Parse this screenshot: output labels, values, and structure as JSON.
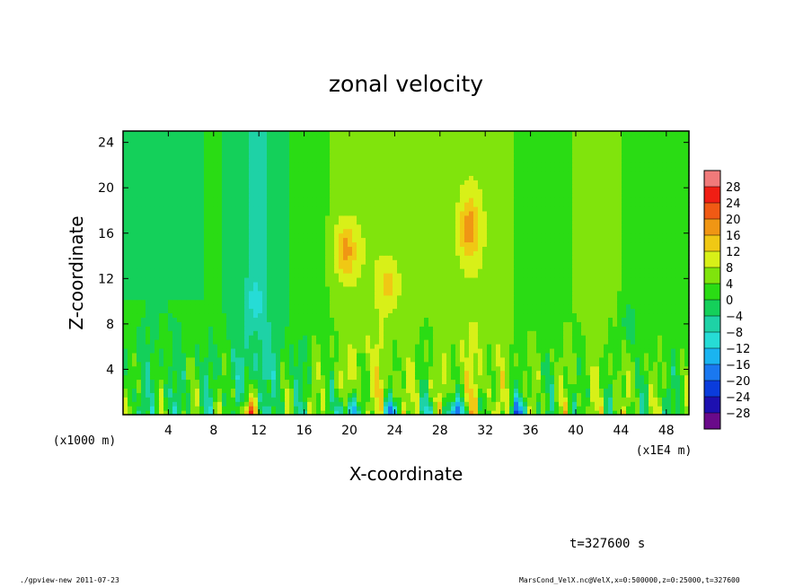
{
  "chart_data": {
    "type": "heatmap",
    "title": "zonal velocity",
    "xlabel": "X-coordinate",
    "ylabel": "Z-coordinate",
    "x_unit": "(x1E4 m)",
    "y_unit": "(x1000 m)",
    "xlim": [
      0,
      50
    ],
    "ylim": [
      0,
      25
    ],
    "x_ticks": [
      4,
      8,
      12,
      16,
      20,
      24,
      28,
      32,
      36,
      40,
      44,
      48
    ],
    "y_ticks": [
      4,
      8,
      12,
      16,
      20,
      24
    ],
    "colorbar": {
      "levels": [
        -28,
        -24,
        -20,
        -16,
        -12,
        -8,
        -4,
        0,
        4,
        8,
        12,
        16,
        20,
        24,
        28
      ],
      "labels": [
        "28",
        "24",
        "20",
        "16",
        "12",
        "8",
        "4",
        "0",
        "−4",
        "−8",
        "−12",
        "−16",
        "−20",
        "−24",
        "−28"
      ],
      "colors": [
        "#6a0a8a",
        "#1d10b0",
        "#0a3cdc",
        "#1a78f0",
        "#1ab4f0",
        "#26dcd6",
        "#1ed2a6",
        "#14d05a",
        "#2adc14",
        "#80e40c",
        "#d8f018",
        "#f0c814",
        "#f09614",
        "#f05a14",
        "#f01e14",
        "#f07a7a"
      ]
    },
    "features": [
      {
        "desc": "positive jet",
        "x": 19.5,
        "z": 14.5,
        "value": 20
      },
      {
        "desc": "positive jet",
        "x": 30.5,
        "z": 16.5,
        "value": 20
      },
      {
        "desc": "positive jet",
        "x": 23.5,
        "z": 11.5,
        "value": 16
      },
      {
        "desc": "surface max",
        "x": 11,
        "z": 0.5,
        "value": 26
      },
      {
        "desc": "surface min",
        "x": 20,
        "z": 1,
        "value": -22
      },
      {
        "desc": "surface min",
        "x": 30,
        "z": 1,
        "value": -22
      },
      {
        "desc": "surface min",
        "x": 35,
        "z": 1,
        "value": -20
      },
      {
        "desc": "negative band",
        "x": 11.5,
        "z": 12,
        "value": -8
      },
      {
        "desc": "negative band",
        "x": 44.5,
        "z": 8,
        "value": -10
      }
    ]
  },
  "annotations": {
    "time": "t=327600 s",
    "footer_left": "./gpview-new  2011-07-23",
    "footer_right": "MarsCond_VelX.nc@VelX,x=0:500000,z=0:25000,t=327600"
  }
}
